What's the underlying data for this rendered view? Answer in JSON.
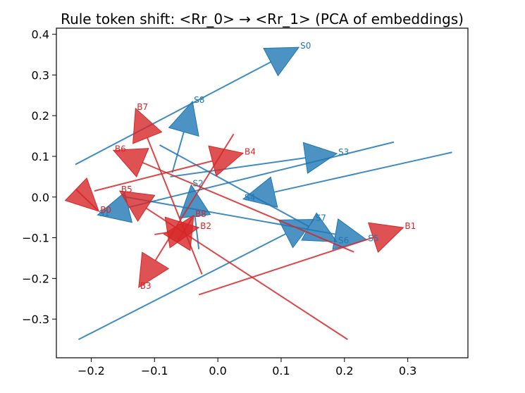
{
  "chart_data": {
    "type": "scatter",
    "title": "Rule token shift: <Rr_0> → <Rr_1> (PCA of embeddings)",
    "xlabel": "",
    "ylabel": "",
    "xlim": [
      -0.255,
      0.395
    ],
    "ylim": [
      -0.395,
      0.415
    ],
    "x_ticks": [
      -0.2,
      -0.1,
      0.0,
      0.1,
      0.2,
      0.3
    ],
    "x_tick_labels": [
      "−0.2",
      "−0.1",
      "0.0",
      "0.1",
      "0.2",
      "0.3"
    ],
    "y_ticks": [
      -0.3,
      -0.2,
      -0.1,
      0.0,
      0.1,
      0.2,
      0.3,
      0.4
    ],
    "y_tick_labels": [
      "−0.3",
      "−0.2",
      "−0.1",
      "0.0",
      "0.1",
      "0.2",
      "0.3",
      "0.4"
    ],
    "grid": false,
    "legend": "none",
    "colors": {
      "S": "#1f77b4",
      "B": "#d62728"
    },
    "series": [
      {
        "group": "S",
        "arrows": [
          {
            "label": "S0",
            "x0": -0.225,
            "y0": 0.08,
            "x1": 0.128,
            "y1": 0.368
          },
          {
            "label": "S1",
            "x0": 0.278,
            "y0": 0.135,
            "x1": -0.19,
            "y1": -0.044
          },
          {
            "label": "S2",
            "x0": -0.03,
            "y0": -0.128,
            "x1": -0.042,
            "y1": 0.03
          },
          {
            "label": "S3",
            "x0": -0.075,
            "y0": 0.05,
            "x1": 0.188,
            "y1": 0.107
          },
          {
            "label": "S4",
            "x0": 0.37,
            "y0": 0.11,
            "x1": 0.04,
            "y1": -0.005
          },
          {
            "label": "S5",
            "x0": -0.145,
            "y0": 0.0,
            "x1": 0.235,
            "y1": -0.105
          },
          {
            "label": "S6",
            "x0": -0.092,
            "y0": 0.128,
            "x1": 0.188,
            "y1": -0.11
          },
          {
            "label": "S7",
            "x0": -0.22,
            "y0": -0.35,
            "x1": 0.152,
            "y1": -0.055
          },
          {
            "label": "S8",
            "x0": -0.072,
            "y0": 0.06,
            "x1": -0.04,
            "y1": 0.235
          }
        ]
      },
      {
        "group": "B",
        "arrows": [
          {
            "label": "B0",
            "x0": -0.19,
            "y0": -0.032,
            "x1": -0.188,
            "y1": -0.035
          },
          {
            "label": "B1",
            "x0": -0.03,
            "y0": -0.24,
            "x1": 0.293,
            "y1": -0.075
          },
          {
            "label": "B2",
            "x0": -0.1,
            "y0": -0.092,
            "x1": -0.03,
            "y1": -0.075
          },
          {
            "label": "B3",
            "x0": 0.025,
            "y0": 0.155,
            "x1": -0.125,
            "y1": -0.222
          },
          {
            "label": "B4",
            "x0": -0.195,
            "y0": 0.015,
            "x1": 0.04,
            "y1": 0.108
          },
          {
            "label": "B5",
            "x0": 0.205,
            "y0": -0.35,
            "x1": -0.155,
            "y1": 0.015
          },
          {
            "label": "B6",
            "x0": 0.215,
            "y0": -0.135,
            "x1": -0.165,
            "y1": 0.115
          },
          {
            "label": "B7",
            "x0": -0.025,
            "y0": -0.19,
            "x1": -0.13,
            "y1": 0.218
          },
          {
            "label": "B8",
            "x0": -0.04,
            "y0": -0.05,
            "x1": -0.038,
            "y1": -0.045
          }
        ]
      }
    ]
  }
}
